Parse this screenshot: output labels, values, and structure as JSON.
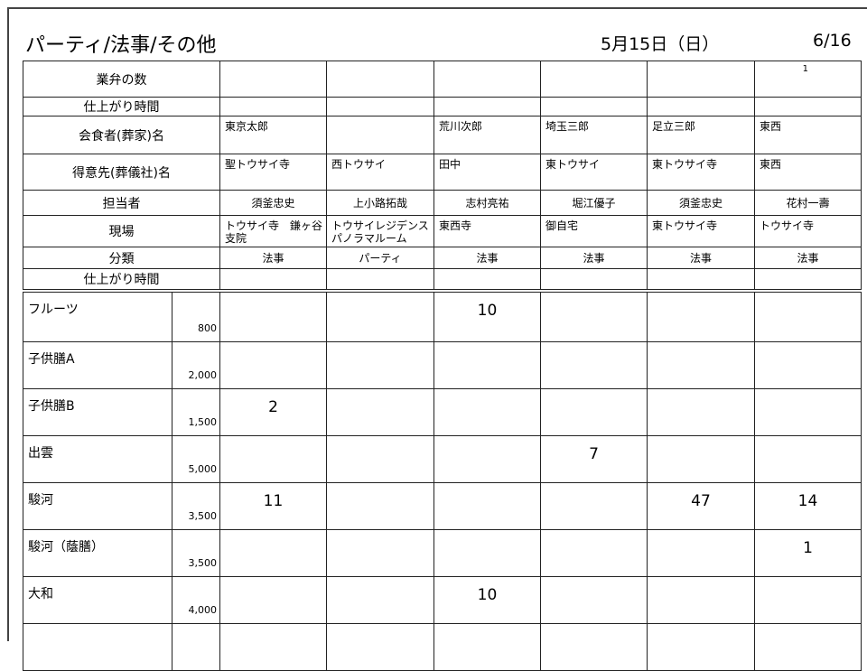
{
  "header": {
    "title": "パーティ/法事/その他",
    "date": "5月15日（日）",
    "page": "6/16"
  },
  "info_rows": [
    {
      "label": "業弁の数",
      "style": "r",
      "cells": [
        "",
        "",
        "",
        "",
        "",
        "1"
      ]
    },
    {
      "label": "仕上がり時間",
      "style": "c",
      "cells": [
        "",
        "",
        "",
        "",
        "",
        ""
      ]
    },
    {
      "label": "会食者(葬家)名",
      "style": "l",
      "cells": [
        "東京太郎",
        "",
        "荒川次郎",
        "埼玉三郎",
        "足立三郎",
        "東西"
      ]
    },
    {
      "label": "得意先(葬儀社)名",
      "style": "l",
      "cells": [
        "聖トウサイ寺",
        "西トウサイ",
        "田中",
        "東トウサイ",
        "東トウサイ寺",
        "東西"
      ]
    },
    {
      "label": "担当者",
      "style": "c",
      "cells": [
        "須釜忠史",
        "上小路拓哉",
        "志村亮祐",
        "堀江優子",
        "須釜忠史",
        "花村一壽"
      ]
    },
    {
      "label": "現場",
      "style": "l",
      "cells": [
        "トウサイ寺　鎌ヶ谷支院",
        "トウサイレジデンス パノラマルーム",
        "東西寺",
        "御自宅",
        "東トウサイ寺",
        "トウサイ寺"
      ]
    },
    {
      "label": "分類",
      "style": "c",
      "cells": [
        "法事",
        "パーティ",
        "法事",
        "法事",
        "法事",
        "法事"
      ]
    },
    {
      "label": "仕上がり時間",
      "style": "c",
      "cells": [
        "",
        "",
        "",
        "",
        "",
        ""
      ]
    }
  ],
  "products": [
    {
      "name": "フルーツ",
      "price": "800",
      "qty": [
        "",
        "",
        "10",
        "",
        "",
        ""
      ]
    },
    {
      "name": "子供膳A",
      "price": "2,000",
      "qty": [
        "",
        "",
        "",
        "",
        "",
        ""
      ]
    },
    {
      "name": "子供膳B",
      "price": "1,500",
      "qty": [
        "2",
        "",
        "",
        "",
        "",
        ""
      ]
    },
    {
      "name": "出雲",
      "price": "5,000",
      "qty": [
        "",
        "",
        "",
        "7",
        "",
        ""
      ]
    },
    {
      "name": "駿河",
      "price": "3,500",
      "qty": [
        "11",
        "",
        "",
        "",
        "47",
        "14"
      ]
    },
    {
      "name": "駿河（蔭膳）",
      "price": "3,500",
      "qty": [
        "",
        "",
        "",
        "",
        "",
        "1"
      ]
    },
    {
      "name": "大和",
      "price": "4,000",
      "qty": [
        "",
        "",
        "10",
        "",
        "",
        ""
      ]
    },
    {
      "name": "",
      "price": "",
      "qty": [
        "",
        "",
        "",
        "",
        "",
        ""
      ]
    }
  ]
}
